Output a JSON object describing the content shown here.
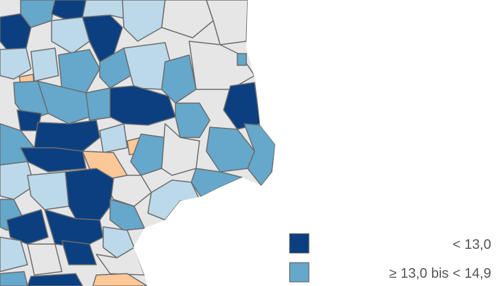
{
  "legend": {
    "items": [
      {
        "label": "< 13,0"
      },
      {
        "label": "≥ 13,0 bis < 14,9"
      }
    ]
  }
}
